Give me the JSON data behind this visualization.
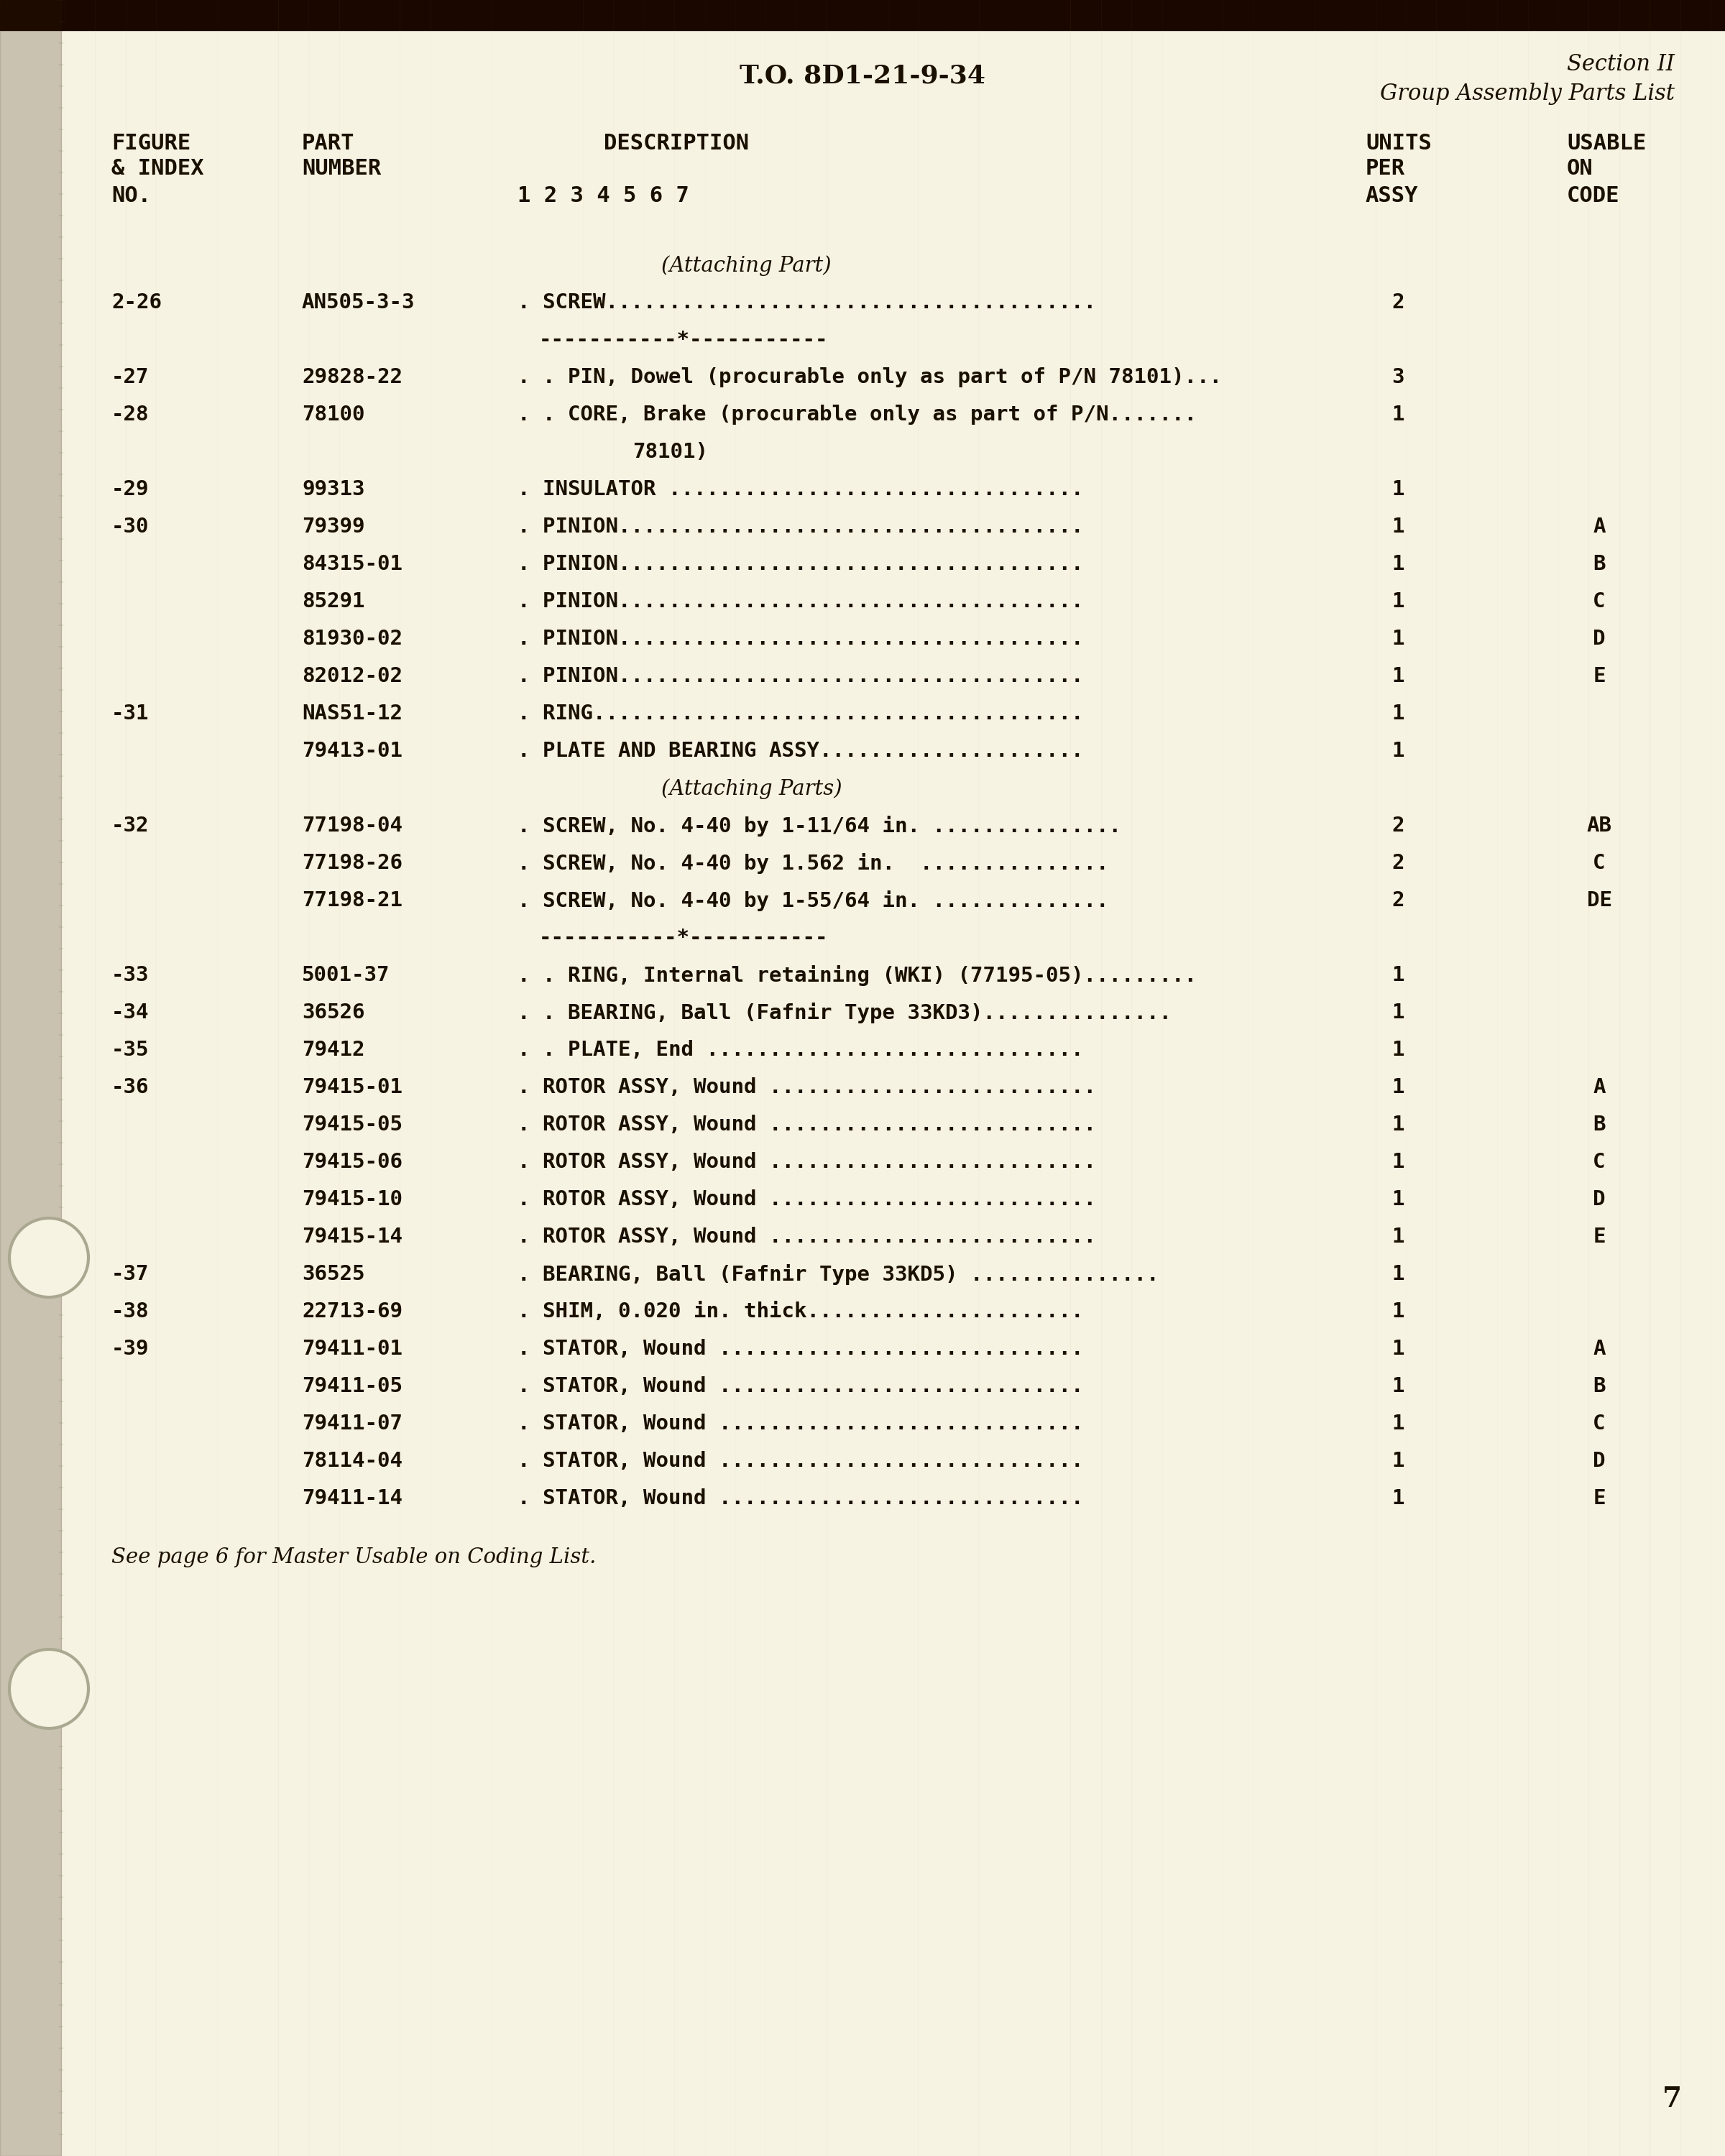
{
  "bg_color": "#f7f3e3",
  "text_color": "#1a1000",
  "header_center": "T.O. 8D1-21-9-34",
  "header_right_line1": "Section II",
  "header_right_line2": "Group Assembly Parts List",
  "page_number": "7",
  "footer_note": "See page 6 for Master Usable on Coding List.",
  "rows": [
    {
      "fig": "",
      "part": "",
      "desc_indent": 4,
      "desc": "(Attaching Part)",
      "units": "",
      "usable": "",
      "italic": true
    },
    {
      "fig": "2-26",
      "part": "AN505-3-3",
      "desc_indent": 0,
      "desc": ". SCREW.......................................",
      "units": "2",
      "usable": ""
    },
    {
      "fig": "",
      "part": "",
      "desc_indent": 0,
      "desc": "-----------*-----------",
      "units": "",
      "usable": "",
      "separator": true
    },
    {
      "fig": "-27",
      "part": "29828-22",
      "desc_indent": 0,
      "desc": ". . PIN, Dowel (procurable only as part of P/N 78101)...",
      "units": "3",
      "usable": ""
    },
    {
      "fig": "-28",
      "part": "78100",
      "desc_indent": 0,
      "desc": ". . CORE, Brake (procurable only as part of P/N.......",
      "units": "1",
      "usable": ""
    },
    {
      "fig": "",
      "part": "",
      "desc_indent": 0,
      "desc": "        78101)",
      "units": "",
      "usable": "",
      "continuation": true
    },
    {
      "fig": "-29",
      "part": "99313",
      "desc_indent": 0,
      "desc": ". INSULATOR .................................",
      "units": "1",
      "usable": ""
    },
    {
      "fig": "-30",
      "part": "79399",
      "desc_indent": 0,
      "desc": ". PINION.....................................",
      "units": "1",
      "usable": "A"
    },
    {
      "fig": "",
      "part": "84315-01",
      "desc_indent": 0,
      "desc": ". PINION.....................................",
      "units": "1",
      "usable": "B"
    },
    {
      "fig": "",
      "part": "85291",
      "desc_indent": 0,
      "desc": ". PINION.....................................",
      "units": "1",
      "usable": "C"
    },
    {
      "fig": "",
      "part": "81930-02",
      "desc_indent": 0,
      "desc": ". PINION.....................................",
      "units": "1",
      "usable": "D"
    },
    {
      "fig": "",
      "part": "82012-02",
      "desc_indent": 0,
      "desc": ". PINION.....................................",
      "units": "1",
      "usable": "E"
    },
    {
      "fig": "-31",
      "part": "NAS51-12",
      "desc_indent": 0,
      "desc": ". RING.......................................",
      "units": "1",
      "usable": ""
    },
    {
      "fig": "",
      "part": "79413-01",
      "desc_indent": 0,
      "desc": ". PLATE AND BEARING ASSY.....................",
      "units": "1",
      "usable": ""
    },
    {
      "fig": "",
      "part": "",
      "desc_indent": 4,
      "desc": "(Attaching Parts)",
      "units": "",
      "usable": "",
      "italic": true
    },
    {
      "fig": "-32",
      "part": "77198-04",
      "desc_indent": 0,
      "desc": ". SCREW, No. 4-40 by 1-11/64 in. ...............",
      "units": "2",
      "usable": "AB"
    },
    {
      "fig": "",
      "part": "77198-26",
      "desc_indent": 0,
      "desc": ". SCREW, No. 4-40 by 1.562 in.  ...............",
      "units": "2",
      "usable": "C"
    },
    {
      "fig": "",
      "part": "77198-21",
      "desc_indent": 0,
      "desc": ". SCREW, No. 4-40 by 1-55/64 in. ..............",
      "units": "2",
      "usable": "DE"
    },
    {
      "fig": "",
      "part": "",
      "desc_indent": 0,
      "desc": "-----------*-----------",
      "units": "",
      "usable": "",
      "separator": true
    },
    {
      "fig": "-33",
      "part": "5001-37",
      "desc_indent": 0,
      "desc": ". . RING, Internal retaining (WKI) (77195-05).........",
      "units": "1",
      "usable": ""
    },
    {
      "fig": "-34",
      "part": "36526",
      "desc_indent": 0,
      "desc": ". . BEARING, Ball (Fafnir Type 33KD3)...............",
      "units": "1",
      "usable": ""
    },
    {
      "fig": "-35",
      "part": "79412",
      "desc_indent": 0,
      "desc": ". . PLATE, End ..............................",
      "units": "1",
      "usable": ""
    },
    {
      "fig": "-36",
      "part": "79415-01",
      "desc_indent": 0,
      "desc": ". ROTOR ASSY, Wound ..........................",
      "units": "1",
      "usable": "A"
    },
    {
      "fig": "",
      "part": "79415-05",
      "desc_indent": 0,
      "desc": ". ROTOR ASSY, Wound ..........................",
      "units": "1",
      "usable": "B"
    },
    {
      "fig": "",
      "part": "79415-06",
      "desc_indent": 0,
      "desc": ". ROTOR ASSY, Wound ..........................",
      "units": "1",
      "usable": "C"
    },
    {
      "fig": "",
      "part": "79415-10",
      "desc_indent": 0,
      "desc": ". ROTOR ASSY, Wound ..........................",
      "units": "1",
      "usable": "D"
    },
    {
      "fig": "",
      "part": "79415-14",
      "desc_indent": 0,
      "desc": ". ROTOR ASSY, Wound ..........................",
      "units": "1",
      "usable": "E"
    },
    {
      "fig": "-37",
      "part": "36525",
      "desc_indent": 0,
      "desc": ". BEARING, Ball (Fafnir Type 33KD5) ...............",
      "units": "1",
      "usable": ""
    },
    {
      "fig": "-38",
      "part": "22713-69",
      "desc_indent": 0,
      "desc": ". SHIM, 0.020 in. thick......................",
      "units": "1",
      "usable": ""
    },
    {
      "fig": "-39",
      "part": "79411-01",
      "desc_indent": 0,
      "desc": ". STATOR, Wound .............................",
      "units": "1",
      "usable": "A"
    },
    {
      "fig": "",
      "part": "79411-05",
      "desc_indent": 0,
      "desc": ". STATOR, Wound .............................",
      "units": "1",
      "usable": "B"
    },
    {
      "fig": "",
      "part": "79411-07",
      "desc_indent": 0,
      "desc": ". STATOR, Wound .............................",
      "units": "1",
      "usable": "C"
    },
    {
      "fig": "",
      "part": "78114-04",
      "desc_indent": 0,
      "desc": ". STATOR, Wound .............................",
      "units": "1",
      "usable": "D"
    },
    {
      "fig": "",
      "part": "79411-14",
      "desc_indent": 0,
      "desc": ". STATOR, Wound .............................",
      "units": "1",
      "usable": "E"
    }
  ]
}
